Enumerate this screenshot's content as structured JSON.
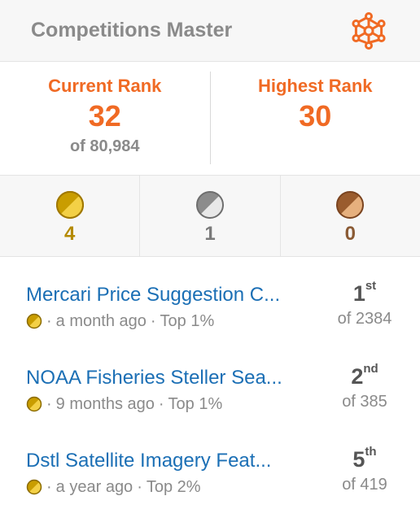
{
  "header": {
    "title": "Competitions Master",
    "settings_icon": "gear-network-icon",
    "accent": "#f06a24"
  },
  "ranks": {
    "current": {
      "label": "Current Rank",
      "value": "32",
      "of": "of 80,984"
    },
    "highest": {
      "label": "Highest Rank",
      "value": "30"
    }
  },
  "medals": {
    "gold": {
      "count": "4",
      "color": "#b48a00"
    },
    "silver": {
      "count": "1",
      "color": "#7a7a7a"
    },
    "bronze": {
      "count": "0",
      "color": "#8a5a34"
    }
  },
  "competitions": [
    {
      "title": "Mercari Price Suggestion C...",
      "time": "a month ago",
      "top": "Top 1%",
      "medal": "gold",
      "place": "1",
      "suffix": "st",
      "of": "of 2384"
    },
    {
      "title": "NOAA Fisheries Steller Sea...",
      "time": "9 months ago",
      "top": "Top 1%",
      "medal": "gold",
      "place": "2",
      "suffix": "nd",
      "of": "of 385"
    },
    {
      "title": "Dstl Satellite Imagery Feat...",
      "time": "a year ago",
      "top": "Top 2%",
      "medal": "gold",
      "place": "5",
      "suffix": "th",
      "of": "of 419"
    }
  ],
  "separator": "·"
}
